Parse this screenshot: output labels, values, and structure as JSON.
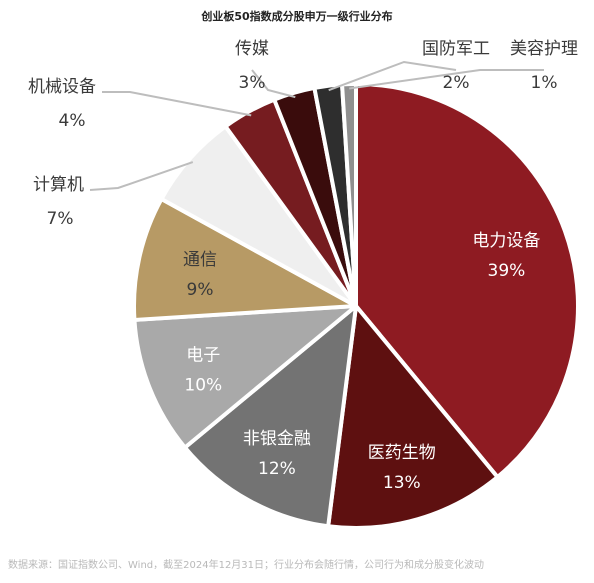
{
  "chart_data": {
    "type": "pie",
    "title": "创业板50指数成分股申万一级行业分布",
    "source": "数据来源：国证指数公司、Wind，截至2024年12月31日；行业分布会随行情，公司行为和成分股变化波动",
    "slices": [
      {
        "label": "电力设备",
        "value_label": "39%",
        "value": 39,
        "color": "#8e1b22",
        "text_color": "#ffffff"
      },
      {
        "label": "医药生物",
        "value_label": "13%",
        "value": 13,
        "color": "#5e1010",
        "text_color": "#ffffff"
      },
      {
        "label": "非银金融",
        "value_label": "12%",
        "value": 12,
        "color": "#737373",
        "text_color": "#ffffff"
      },
      {
        "label": "电子",
        "value_label": "10%",
        "value": 10,
        "color": "#a9a9a9",
        "text_color": "#ffffff"
      },
      {
        "label": "通信",
        "value_label": "9%",
        "value": 9,
        "color": "#b79a65",
        "text_color": "#3a3a3a"
      },
      {
        "label": "计算机",
        "value_label": "7%",
        "value": 7,
        "color": "#efefef",
        "text_color": "#3a3a3a"
      },
      {
        "label": "机械设备",
        "value_label": "4%",
        "value": 4,
        "color": "#761c20",
        "text_color": "#3a3a3a"
      },
      {
        "label": "传媒",
        "value_label": "3%",
        "value": 3,
        "color": "#3a0c0c",
        "text_color": "#3a3a3a"
      },
      {
        "label": "国防军工",
        "value_label": "2%",
        "value": 2,
        "color": "#2e2e2e",
        "text_color": "#3a3a3a"
      },
      {
        "label": "美容护理",
        "value_label": "1%",
        "value": 1,
        "color": "#8f8f8f",
        "text_color": "#3a3a3a"
      }
    ]
  }
}
